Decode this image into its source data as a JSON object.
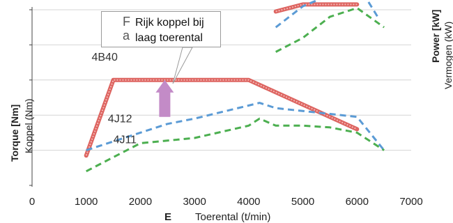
{
  "callout": {
    "hidden_line1": "F",
    "hidden_line2": "a",
    "line1": "Rijk koppel bij",
    "line2": "laag toerental"
  },
  "axis_labels": {
    "ylabel_left_bold": "Torque [Nm]",
    "ylabel_left": "Koppel (Nm)",
    "ylabel_right_bold": "Power [kW]",
    "ylabel_right": "Vermogen (kW)",
    "xlabel_prefix": "E",
    "xlabel": "Toerental (t/min)"
  },
  "chart_data": {
    "type": "line",
    "xlabel": "Toerental (t/min)",
    "ylabel": "Koppel (Nm)",
    "ylabel_right": "Vermogen (kW)",
    "xlim": [
      0,
      7000
    ],
    "xticks": [
      0,
      1000,
      2000,
      3000,
      4000,
      5000,
      6000,
      7000
    ],
    "ylim": [
      0,
      5
    ],
    "y_scale_note_hidden_ticks": true,
    "series": [
      {
        "name": "4B40",
        "color": "#d9534f",
        "style": "solid-thick",
        "label_at": [
          1100,
          3.55
        ],
        "points": [
          [
            1000,
            0.85
          ],
          [
            1500,
            3.0
          ],
          [
            4000,
            3.0
          ],
          [
            6000,
            1.6
          ]
        ]
      },
      {
        "name": "",
        "color": "#d9534f",
        "style": "solid-thick",
        "points": [
          [
            4500,
            4.95
          ],
          [
            5000,
            5.15
          ],
          [
            6000,
            5.15
          ]
        ]
      },
      {
        "name": "4J12",
        "color": "#5b9bd5",
        "style": "dashed",
        "label_at": [
          1400,
          1.8
        ],
        "points": [
          [
            1000,
            1.0
          ],
          [
            2500,
            1.75
          ],
          [
            3000,
            1.9
          ],
          [
            4200,
            2.35
          ],
          [
            4500,
            2.2
          ],
          [
            6000,
            1.95
          ],
          [
            6500,
            1.0
          ]
        ]
      },
      {
        "name": "",
        "color": "#5b9bd5",
        "style": "dashed",
        "points": [
          [
            4500,
            4.5
          ],
          [
            5000,
            5.1
          ],
          [
            6000,
            5.75
          ],
          [
            6400,
            4.75
          ]
        ]
      },
      {
        "name": "4J11",
        "color": "#4caf50",
        "style": "dashed",
        "label_at": [
          1500,
          1.2
        ],
        "points": [
          [
            1000,
            0.4
          ],
          [
            2000,
            1.2
          ],
          [
            3000,
            1.35
          ],
          [
            4000,
            1.7
          ],
          [
            4200,
            1.9
          ],
          [
            4500,
            1.7
          ],
          [
            5000,
            1.7
          ],
          [
            5500,
            1.65
          ],
          [
            6000,
            1.5
          ],
          [
            6500,
            1.0
          ]
        ]
      },
      {
        "name": "",
        "color": "#4caf50",
        "style": "dashed",
        "points": [
          [
            4500,
            3.8
          ],
          [
            5000,
            4.2
          ],
          [
            5500,
            4.8
          ],
          [
            6000,
            5.05
          ],
          [
            6500,
            4.5
          ]
        ]
      }
    ],
    "annotations": [
      {
        "type": "arrow-up",
        "color": "#c38bc7",
        "x": 2450,
        "y_from": 1.95,
        "y_to": 3.0
      }
    ]
  }
}
